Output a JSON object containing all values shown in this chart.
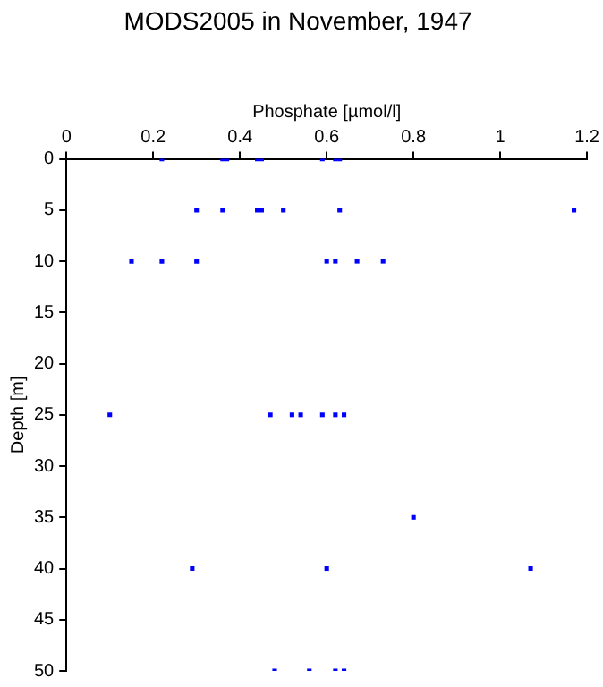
{
  "chart_data": {
    "type": "scatter",
    "title": "MODS2005 in November, 1947",
    "xlabel": "Phosphate [µmol/l]",
    "ylabel": "Depth [m]",
    "series": [
      {
        "color": "#0000ff",
        "x": [
          0.22,
          0.36,
          0.37,
          0.44,
          0.45,
          0.59,
          0.62,
          0.63,
          0.3,
          0.36,
          0.44,
          0.45,
          0.5,
          0.63,
          1.17,
          0.15,
          0.22,
          0.3,
          0.6,
          0.62,
          0.67,
          0.73,
          0.1,
          0.47,
          0.52,
          0.54,
          0.59,
          0.62,
          0.64,
          0.8,
          0.29,
          0.6,
          1.07,
          0.48,
          0.56,
          0.62,
          0.64
        ],
        "values": [
          0,
          0,
          0,
          0,
          0,
          0,
          0,
          0,
          5,
          5,
          5,
          5,
          5,
          5,
          5,
          10,
          10,
          10,
          10,
          10,
          10,
          10,
          25,
          25,
          25,
          25,
          25,
          25,
          25,
          35,
          40,
          40,
          40,
          50,
          50,
          50,
          50
        ]
      }
    ],
    "xlim": [
      0,
      1.2
    ],
    "xticks": [
      0,
      0.2,
      0.4,
      0.6,
      0.8,
      1,
      1.2
    ],
    "ylim": [
      50,
      0
    ],
    "yticks": [
      0,
      5,
      10,
      15,
      20,
      25,
      30,
      35,
      40,
      45,
      50
    ],
    "grid": false,
    "legend": false,
    "marker": "square"
  }
}
